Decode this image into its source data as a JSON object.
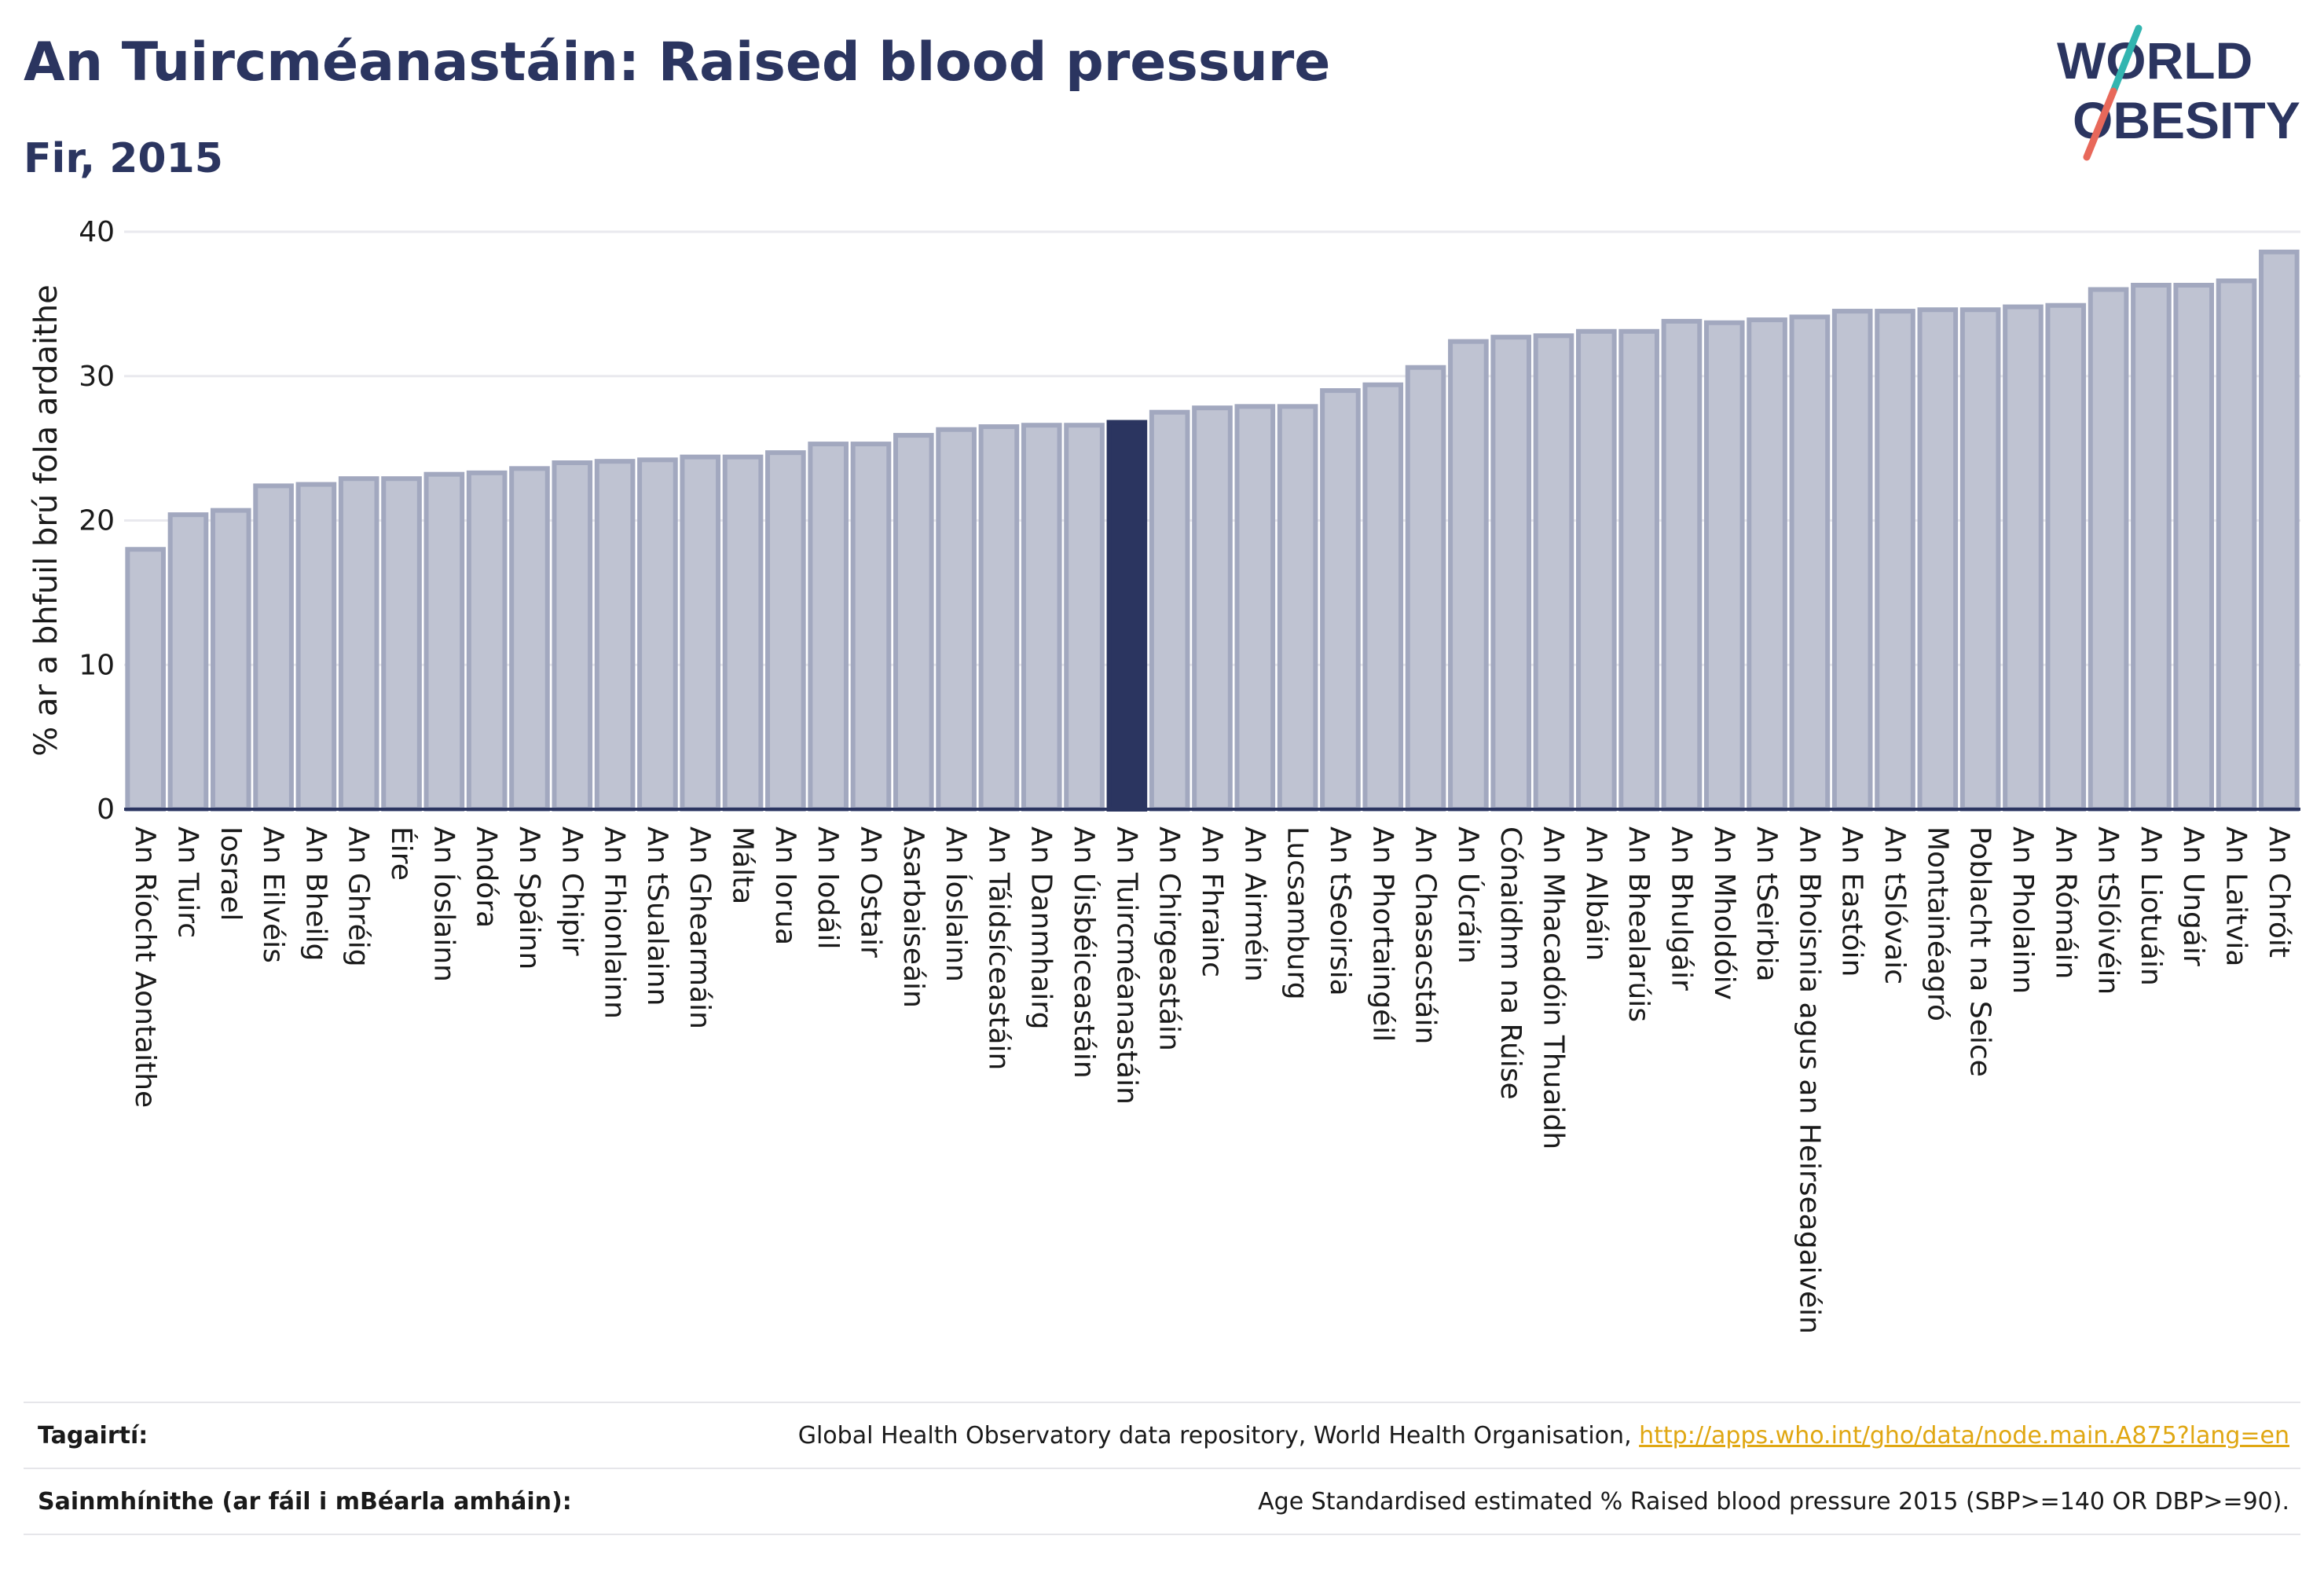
{
  "header": {
    "title": "An Tuircméanastáin: Raised blood pressure",
    "subtitle": "Fir, 2015"
  },
  "logo": {
    "line1": "WORLD",
    "line2": "OBESITY",
    "colors": {
      "text": "#2b3560",
      "slash_teal": "#33b5b0",
      "slash_red": "#e8685a"
    }
  },
  "colors": {
    "bar": "#bfc3d2",
    "bar_stroke": "#a2a8bf",
    "highlight": "#2b3560",
    "grid": "#e9e9ee",
    "axis": "#2b3560",
    "link": "#e0a712"
  },
  "chart_data": {
    "type": "bar",
    "title": "An Tuircméanastáin: Raised blood pressure",
    "subtitle": "Fir, 2015",
    "xlabel": "",
    "ylabel": "% ar a bhfuil brú fola ardaithe",
    "ylim": [
      0,
      40
    ],
    "yticks": [
      0,
      10,
      20,
      30,
      40
    ],
    "grid": true,
    "highlight": "An Tuircméanastáin",
    "categories": [
      "An Ríocht Aontaithe",
      "An Tuirc",
      "Iosrael",
      "An Eilvéis",
      "An Bheilg",
      "An Ghréig",
      "Éire",
      "An Íoslainn",
      "Andóra",
      "An Spáinn",
      "An Chipir",
      "An Fhionlainn",
      "An tSualainn",
      "An Ghearmáin",
      "Málta",
      "An Iorua",
      "An Iodáil",
      "An Ostair",
      "Asarbaiseáin",
      "An Íoslainn",
      "An Táidsíceastáin",
      "An Danmhairg",
      "An Úisbéiceastáin",
      "An Tuircméanastáin",
      "An Chirgeastáin",
      "An Fhrainc",
      "An Airméin",
      "Lucsamburg",
      "An tSeoirsia",
      "An Phortaingéil",
      "An Chasacstáin",
      "An Úcráin",
      "Cónaidhm na Rúise",
      "An Mhacadóin Thuaidh",
      "An Albáin",
      "An Bhealarúis",
      "An Bhulgáir",
      "An Mholdóiv",
      "An tSeirbia",
      "An Bhoisnia agus an Heirseagaivéin",
      "An Eastóin",
      "An tSlóvaic",
      "Montainéagró",
      "Poblacht na Seice",
      "An Pholainn",
      "An Rómáin",
      "An tSlóivéin",
      "An Liotuáin",
      "An Ungáir",
      "An Laitvia",
      "An Chróit"
    ],
    "values": [
      18.0,
      20.4,
      20.7,
      22.4,
      22.5,
      22.9,
      22.9,
      23.2,
      23.3,
      23.6,
      24.0,
      24.1,
      24.2,
      24.4,
      24.4,
      24.7,
      25.3,
      25.3,
      25.9,
      26.3,
      26.5,
      26.6,
      26.6,
      26.8,
      27.5,
      27.8,
      27.9,
      27.9,
      29.0,
      29.4,
      30.6,
      32.4,
      32.7,
      32.8,
      33.1,
      33.1,
      33.8,
      33.7,
      33.9,
      34.1,
      34.5,
      34.5,
      34.6,
      34.6,
      34.8,
      34.9,
      36.0,
      36.3,
      36.3,
      36.6,
      38.6
    ]
  },
  "references": {
    "label": "Tagairtí:",
    "text": "Global Health Observatory data repository, World Health Organisation, ",
    "link": "http://apps.who.int/gho/data/node.main.A875?lang=en"
  },
  "definitions": {
    "label": "Sainmhínithe (ar fáil i mBéarla amháin):",
    "text": "Age Standardised estimated % Raised blood pressure 2015 (SBP>=140 OR DBP>=90)."
  }
}
